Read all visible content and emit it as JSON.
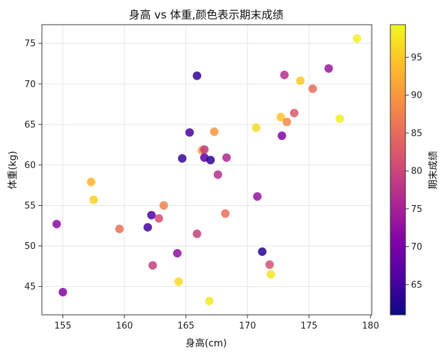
{
  "chart_data": {
    "type": "scatter",
    "title": "身高 vs 体重,颜色表示期末成绩",
    "xlabel": "身高(cm)",
    "ylabel": "体重(kg)",
    "xlim": [
      153.3,
      180.1
    ],
    "ylim": [
      41.5,
      77.3
    ],
    "xticks": [
      "155",
      "160",
      "165",
      "170",
      "175",
      "180"
    ],
    "yticks": [
      "45",
      "50",
      "55",
      "60",
      "65",
      "70",
      "75"
    ],
    "grid": true,
    "colorbar": {
      "label": "期末成绩",
      "range": [
        61.0,
        99.3
      ],
      "ticks": [
        "65",
        "70",
        "75",
        "80",
        "85",
        "90",
        "95"
      ],
      "colormap": "plasma"
    },
    "points": [
      {
        "x": 154.5,
        "y": 52.7,
        "c": 72.0
      },
      {
        "x": 155.0,
        "y": 44.3,
        "c": 71.0
      },
      {
        "x": 157.3,
        "y": 57.9,
        "c": 93.0
      },
      {
        "x": 157.5,
        "y": 55.7,
        "c": 95.5
      },
      {
        "x": 159.6,
        "y": 52.1,
        "c": 85.5
      },
      {
        "x": 161.9,
        "y": 52.3,
        "c": 65.0
      },
      {
        "x": 162.2,
        "y": 53.8,
        "c": 66.0
      },
      {
        "x": 162.3,
        "y": 47.6,
        "c": 79.0
      },
      {
        "x": 162.8,
        "y": 53.4,
        "c": 81.0
      },
      {
        "x": 163.2,
        "y": 55.0,
        "c": 87.5
      },
      {
        "x": 164.3,
        "y": 49.1,
        "c": 72.5
      },
      {
        "x": 164.4,
        "y": 45.6,
        "c": 96.5
      },
      {
        "x": 164.7,
        "y": 60.8,
        "c": 64.5
      },
      {
        "x": 165.3,
        "y": 64.0,
        "c": 65.5
      },
      {
        "x": 165.9,
        "y": 71.0,
        "c": 64.0
      },
      {
        "x": 165.9,
        "y": 51.5,
        "c": 79.5
      },
      {
        "x": 166.3,
        "y": 61.8,
        "c": 90.5
      },
      {
        "x": 166.5,
        "y": 61.9,
        "c": 78.5
      },
      {
        "x": 166.5,
        "y": 60.9,
        "c": 67.0
      },
      {
        "x": 166.9,
        "y": 43.2,
        "c": 98.0
      },
      {
        "x": 167.0,
        "y": 60.6,
        "c": 63.5
      },
      {
        "x": 167.3,
        "y": 64.1,
        "c": 90.0
      },
      {
        "x": 167.6,
        "y": 58.8,
        "c": 77.0
      },
      {
        "x": 168.2,
        "y": 54.0,
        "c": 85.0
      },
      {
        "x": 168.3,
        "y": 60.9,
        "c": 76.0
      },
      {
        "x": 170.7,
        "y": 64.6,
        "c": 96.5
      },
      {
        "x": 170.8,
        "y": 56.1,
        "c": 73.0
      },
      {
        "x": 171.2,
        "y": 49.3,
        "c": 63.0
      },
      {
        "x": 171.8,
        "y": 47.7,
        "c": 81.5
      },
      {
        "x": 171.9,
        "y": 46.5,
        "c": 97.5
      },
      {
        "x": 172.7,
        "y": 65.9,
        "c": 94.5
      },
      {
        "x": 172.8,
        "y": 63.6,
        "c": 71.0
      },
      {
        "x": 173.0,
        "y": 71.1,
        "c": 77.0
      },
      {
        "x": 173.2,
        "y": 65.3,
        "c": 88.5
      },
      {
        "x": 173.8,
        "y": 66.4,
        "c": 82.5
      },
      {
        "x": 174.3,
        "y": 70.4,
        "c": 95.0
      },
      {
        "x": 175.3,
        "y": 69.4,
        "c": 85.0
      },
      {
        "x": 176.6,
        "y": 71.9,
        "c": 73.5
      },
      {
        "x": 177.5,
        "y": 65.7,
        "c": 98.5
      },
      {
        "x": 178.9,
        "y": 75.6,
        "c": 98.5
      }
    ]
  }
}
